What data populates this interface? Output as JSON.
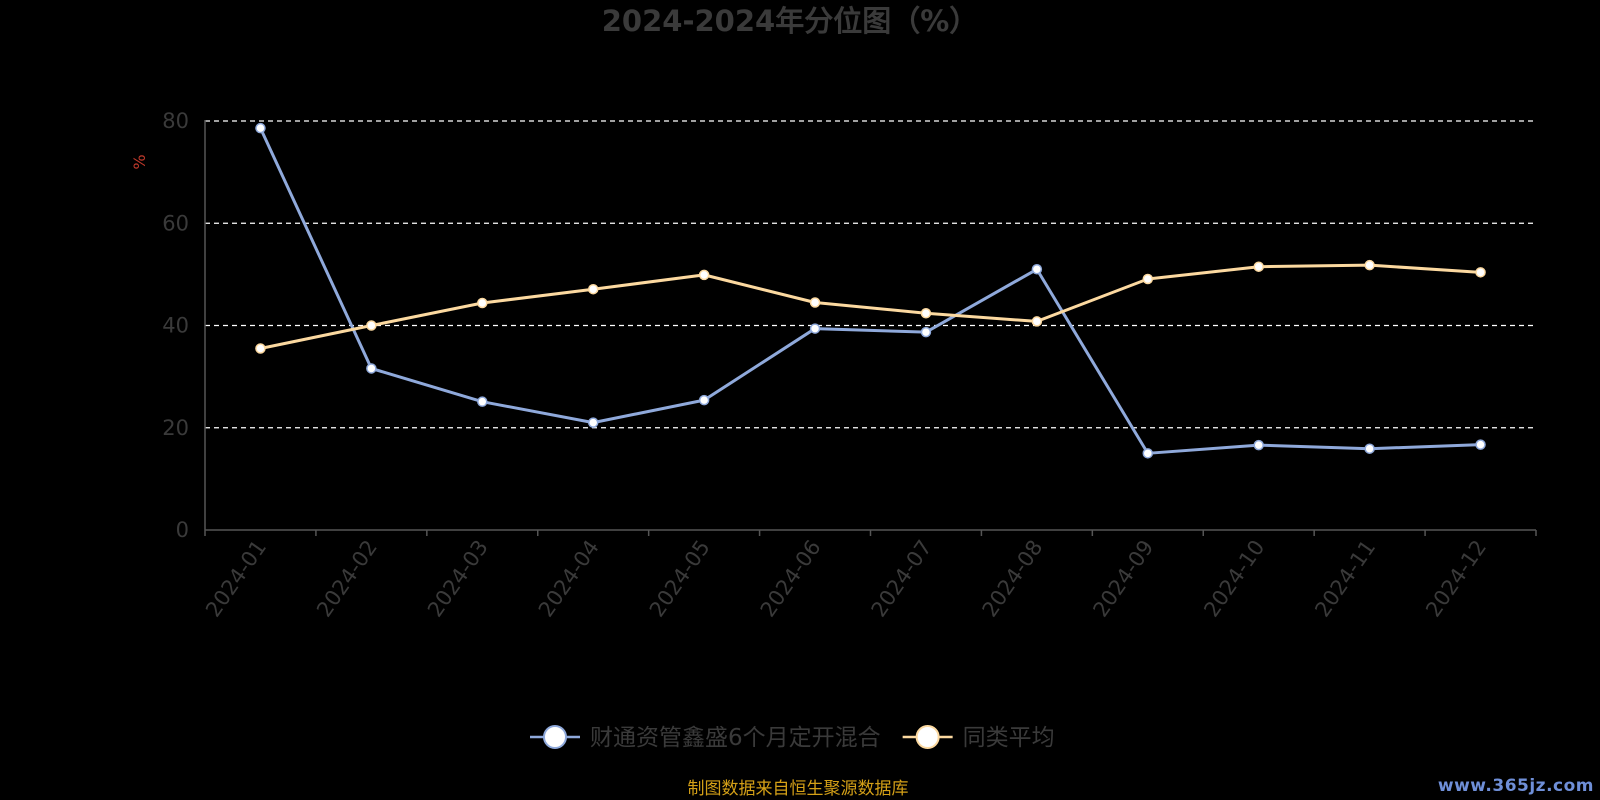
{
  "chart_data": {
    "type": "line",
    "title": "2024-2024年分位图（%）",
    "ylabel": "%",
    "ylim": [
      0,
      80
    ],
    "yticks": [
      0,
      20,
      40,
      60,
      80
    ],
    "grid": true,
    "legend_position": "bottom",
    "categories": [
      "2024-01",
      "2024-02",
      "2024-03",
      "2024-04",
      "2024-05",
      "2024-06",
      "2024-07",
      "2024-08",
      "2024-09",
      "2024-10",
      "2024-11",
      "2024-12"
    ],
    "series": [
      {
        "name": "财通资管鑫盛6个月定开混合",
        "color": "#8fa9db",
        "values": [
          78.6,
          31.6,
          25.1,
          21.0,
          25.4,
          39.4,
          38.7,
          51.0,
          15.0,
          16.6,
          15.9,
          16.7
        ]
      },
      {
        "name": "同类平均",
        "color": "#fcd9a0",
        "values": [
          35.5,
          40.0,
          44.4,
          47.1,
          49.9,
          44.5,
          42.4,
          40.8,
          49.1,
          51.5,
          51.8,
          50.4
        ]
      }
    ],
    "source_note": "制图数据来自恒生聚源数据库"
  },
  "watermark": "www.365jz.com"
}
